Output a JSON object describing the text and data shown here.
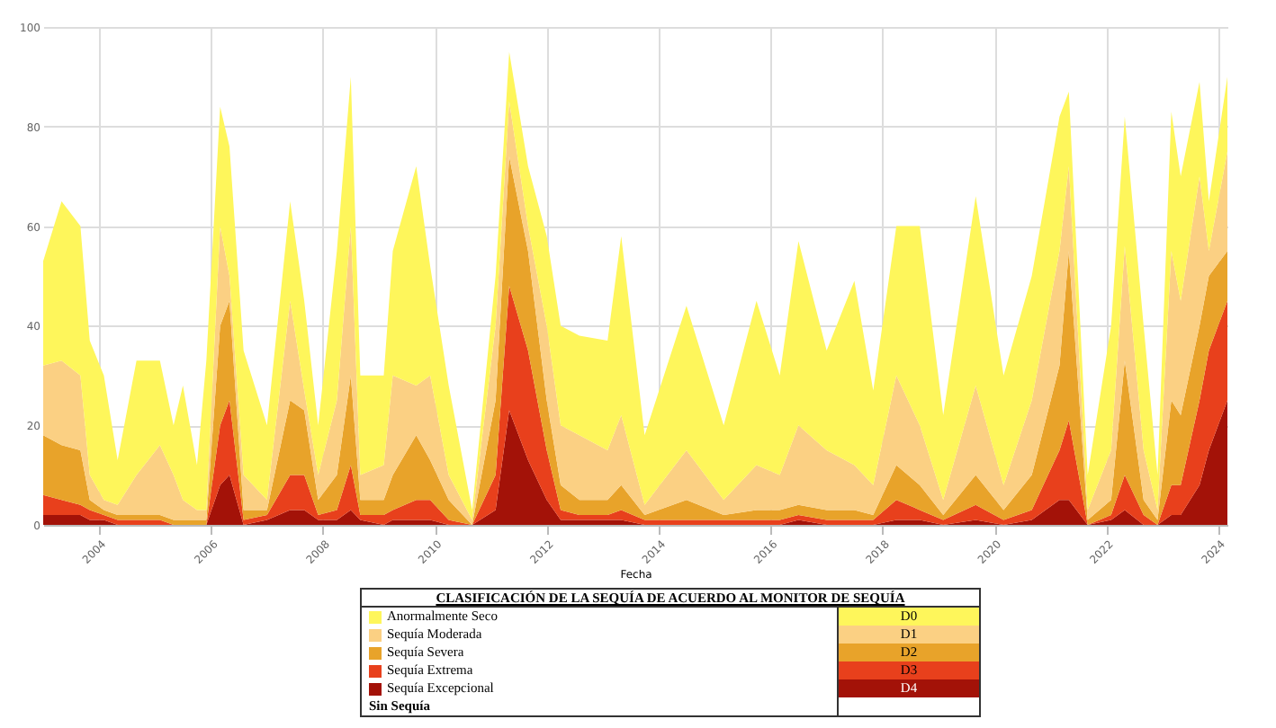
{
  "chart_data": {
    "type": "area",
    "stacked": true,
    "xlabel": "Fecha",
    "legend_title": "CLASIFICACIÓN DE LA SEQUÍA DE ACUERDO AL MONITOR DE SEQUÍA",
    "legend": "bottom",
    "grid": true,
    "x": [
      "2003-01",
      "2003-05",
      "2003-09",
      "2003-11",
      "2004-02",
      "2004-05",
      "2004-09",
      "2005-02",
      "2005-05",
      "2005-07",
      "2005-10",
      "2005-12",
      "2006-03",
      "2006-05",
      "2006-08",
      "2007-01",
      "2007-06",
      "2007-09",
      "2007-12",
      "2008-04",
      "2008-07",
      "2008-09",
      "2009-02",
      "2009-04",
      "2009-09",
      "2009-12",
      "2010-04",
      "2010-09",
      "2011-02",
      "2011-05",
      "2011-09",
      "2012-01",
      "2012-04",
      "2012-08",
      "2013-02",
      "2013-05",
      "2013-10",
      "2014-07",
      "2015-03",
      "2015-10",
      "2016-03",
      "2016-07",
      "2017-01",
      "2017-07",
      "2017-11",
      "2018-04",
      "2018-09",
      "2019-02",
      "2019-09",
      "2020-03",
      "2020-09",
      "2021-03",
      "2021-05",
      "2021-09",
      "2022-02",
      "2022-05",
      "2022-09",
      "2022-12",
      "2023-03",
      "2023-05",
      "2023-09",
      "2023-11",
      "2024-03"
    ],
    "xlim": [
      "2003-01",
      "2024-03"
    ],
    "xticks": [
      "2004",
      "2006",
      "2008",
      "2010",
      "2012",
      "2014",
      "2016",
      "2018",
      "2020",
      "2022",
      "2024"
    ],
    "ylim": [
      0,
      100
    ],
    "yticks": [
      0,
      20,
      40,
      60,
      80,
      100
    ],
    "series": [
      {
        "name": "Sequía Excepcional",
        "color": "#a31208",
        "values": [
          2,
          2,
          2,
          1,
          1,
          0,
          0,
          0,
          0,
          0,
          0,
          0,
          8,
          10,
          0,
          1,
          3,
          3,
          1,
          1,
          3,
          1,
          0,
          1,
          1,
          1,
          0,
          0,
          3,
          23,
          13,
          5,
          1,
          1,
          1,
          1,
          0,
          0,
          0,
          0,
          0,
          1,
          0,
          0,
          0,
          1,
          1,
          0,
          1,
          0,
          1,
          5,
          5,
          0,
          1,
          3,
          0,
          0,
          2,
          2,
          8,
          15,
          25
        ]
      },
      {
        "name": "Sequía Extrema",
        "color": "#e8401c",
        "values": [
          4,
          3,
          2,
          2,
          1,
          1,
          1,
          1,
          0,
          0,
          0,
          0,
          12,
          15,
          1,
          1,
          7,
          7,
          1,
          2,
          9,
          1,
          2,
          2,
          4,
          4,
          1,
          0,
          7,
          25,
          22,
          10,
          2,
          1,
          1,
          2,
          1,
          1,
          1,
          1,
          1,
          1,
          1,
          1,
          1,
          4,
          2,
          1,
          3,
          1,
          2,
          10,
          16,
          0,
          1,
          7,
          2,
          0,
          6,
          6,
          17,
          20,
          20
        ]
      },
      {
        "name": "Sequía Severa",
        "color": "#e8a32a",
        "values": [
          12,
          11,
          11,
          2,
          1,
          1,
          1,
          1,
          1,
          1,
          1,
          1,
          20,
          20,
          2,
          1,
          15,
          13,
          3,
          7,
          18,
          3,
          3,
          7,
          13,
          8,
          4,
          0,
          15,
          26,
          20,
          10,
          5,
          3,
          3,
          5,
          1,
          4,
          1,
          2,
          2,
          2,
          2,
          2,
          1,
          7,
          5,
          1,
          6,
          2,
          7,
          17,
          34,
          1,
          3,
          23,
          3,
          1,
          17,
          14,
          15,
          15,
          10
        ]
      },
      {
        "name": "Sequía Moderada",
        "color": "#fbd083",
        "values": [
          14,
          17,
          15,
          5,
          2,
          2,
          8,
          14,
          9,
          4,
          2,
          2,
          20,
          5,
          7,
          2,
          20,
          4,
          5,
          15,
          30,
          5,
          7,
          20,
          10,
          17,
          5,
          1,
          15,
          11,
          5,
          15,
          12,
          13,
          10,
          14,
          2,
          10,
          3,
          9,
          7,
          16,
          12,
          9,
          6,
          18,
          12,
          3,
          18,
          5,
          15,
          23,
          17,
          2,
          10,
          23,
          10,
          2,
          30,
          23,
          30,
          5,
          20
        ]
      },
      {
        "name": "Anormalmente Seco",
        "color": "#fef65b",
        "values": [
          21,
          32,
          30,
          27,
          25,
          9,
          23,
          17,
          10,
          23,
          9,
          30,
          24,
          26,
          25,
          15,
          20,
          18,
          10,
          30,
          30,
          20,
          18,
          25,
          44,
          22,
          18,
          2,
          10,
          10,
          12,
          18,
          20,
          20,
          22,
          36,
          14,
          29,
          15,
          33,
          20,
          37,
          20,
          37,
          19,
          30,
          40,
          17,
          38,
          22,
          25,
          27,
          15,
          7,
          25,
          26,
          25,
          7,
          28,
          25,
          19,
          10,
          15
        ]
      }
    ],
    "annotations": [
      "D0",
      "D1",
      "D2",
      "D3",
      "D4",
      "Sin Sequía"
    ]
  }
}
